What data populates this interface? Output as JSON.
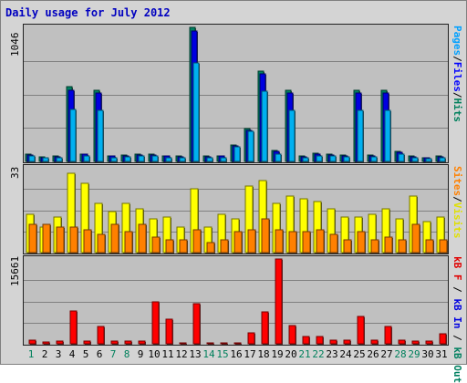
{
  "chart_data": {
    "type": "bar",
    "title": "Daily usage for July 2012",
    "x_labels": [
      "1",
      "2",
      "3",
      "4",
      "5",
      "6",
      "7",
      "8",
      "9",
      "10",
      "11",
      "12",
      "13",
      "14",
      "15",
      "16",
      "17",
      "18",
      "19",
      "20",
      "21",
      "22",
      "23",
      "24",
      "25",
      "26",
      "27",
      "28",
      "29",
      "30",
      "31"
    ],
    "weekend_days": [
      1,
      7,
      8,
      14,
      15,
      21,
      22,
      28,
      29
    ],
    "panels": [
      {
        "name": "hits-files-pages",
        "ymax_label": "1046",
        "ymax": 1046,
        "legend": [
          {
            "text": "Pages",
            "color": "#00a0ff"
          },
          {
            "text": "/",
            "color": "#000000"
          },
          {
            "text": "Files",
            "color": "#0000ff"
          },
          {
            "text": "/",
            "color": "#000000"
          },
          {
            "text": "Hits",
            "color": "#00805c"
          }
        ],
        "series": [
          {
            "name": "Hits",
            "color": "#008060",
            "values": [
              55,
              35,
              40,
              585,
              60,
              555,
              45,
              50,
              55,
              55,
              45,
              40,
              1046,
              40,
              45,
              125,
              255,
              705,
              85,
              555,
              40,
              65,
              55,
              50,
              555,
              50,
              555,
              75,
              40,
              30,
              40
            ]
          },
          {
            "name": "Files",
            "color": "#0000e0",
            "values": [
              50,
              30,
              35,
              555,
              55,
              535,
              40,
              45,
              50,
              50,
              40,
              35,
              1020,
              35,
              40,
              120,
              245,
              685,
              75,
              535,
              35,
              60,
              50,
              45,
              535,
              45,
              535,
              70,
              35,
              25,
              35
            ]
          },
          {
            "name": "Pages",
            "color": "#00b0f0",
            "values": [
              40,
              25,
              30,
              405,
              45,
              400,
              30,
              35,
              40,
              40,
              30,
              25,
              770,
              25,
              30,
              115,
              235,
              545,
              55,
              400,
              25,
              45,
              40,
              35,
              395,
              35,
              395,
              55,
              25,
              20,
              30
            ]
          }
        ]
      },
      {
        "name": "visits-sites",
        "ymax_label": "33",
        "ymax": 33,
        "legend": [
          {
            "text": "Sites",
            "color": "#ff8000"
          },
          {
            "text": "/",
            "color": "#000000"
          },
          {
            "text": "Visits",
            "color": "#e0e000"
          }
        ],
        "series": [
          {
            "name": "Visits",
            "color": "#ffff00",
            "values": [
              15,
              10,
              14,
              31,
              27,
              19,
              16,
              19,
              17,
              13,
              14,
              10,
              25,
              10,
              15,
              13,
              26,
              28,
              19,
              22,
              21,
              20,
              17,
              14,
              14,
              15,
              17,
              13,
              22,
              12,
              14
            ]
          },
          {
            "name": "Sites",
            "color": "#ff8000",
            "values": [
              11,
              11,
              10,
              10,
              9,
              7,
              11,
              8,
              11,
              6,
              5,
              5,
              9,
              4,
              5,
              8,
              9,
              13,
              9,
              8,
              8,
              9,
              7,
              5,
              8,
              5,
              6,
              5,
              11,
              5,
              5
            ]
          }
        ]
      },
      {
        "name": "kbytes",
        "ymax_label": "15661",
        "ymax": 15661,
        "legend": [
          {
            "text": "kB F",
            "color": "#e00000"
          },
          {
            "text": " / ",
            "color": "#000000"
          },
          {
            "text": "kB In",
            "color": "#0000e0"
          },
          {
            "text": " / ",
            "color": "#000000"
          },
          {
            "text": "kB Out",
            "color": "#008060"
          }
        ],
        "series": [
          {
            "name": "kB F",
            "color": "#ff0000",
            "values": [
              600,
              350,
              550,
              6100,
              450,
              3200,
              500,
              500,
              500,
              7800,
              4600,
              250,
              7400,
              250,
              250,
              250,
              2000,
              5900,
              15661,
              3300,
              1300,
              1300,
              750,
              600,
              5100,
              700,
              3200,
              700,
              450,
              450,
              1900
            ]
          }
        ]
      }
    ]
  }
}
